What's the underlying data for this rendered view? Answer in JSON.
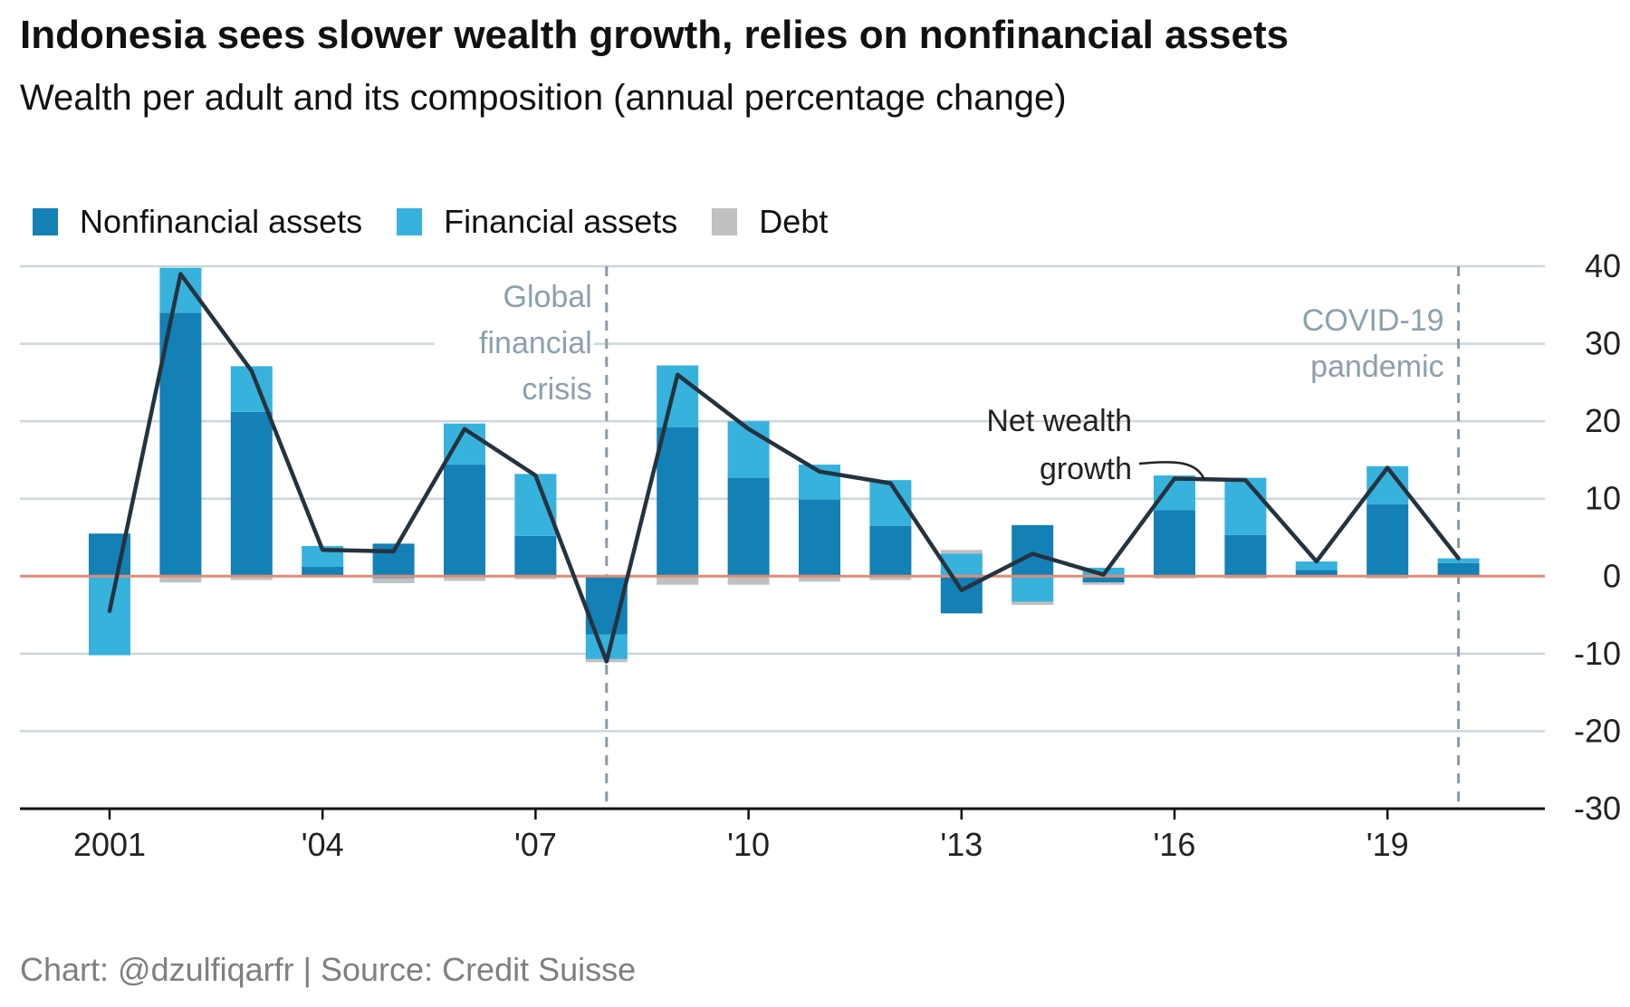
{
  "header": {
    "title": "Indonesia sees slower wealth growth, relies on nonfinancial assets",
    "subtitle": "Wealth per adult and its composition (annual percentage change)"
  },
  "footer": {
    "source": "Chart: @dzulfiqarfr | Source: Credit Suisse"
  },
  "chart_data": {
    "type": "bar",
    "stacked": true,
    "x": [
      2001,
      2002,
      2003,
      2004,
      2005,
      2006,
      2007,
      2008,
      2009,
      2010,
      2011,
      2012,
      2013,
      2014,
      2015,
      2016,
      2017,
      2018,
      2019,
      2020
    ],
    "x_tick_labels": [
      "2001",
      "'04",
      "'07",
      "'10",
      "'13",
      "'16",
      "'19"
    ],
    "x_tick_values": [
      2001,
      2004,
      2007,
      2010,
      2013,
      2016,
      2019
    ],
    "ylim": [
      -30,
      40
    ],
    "y_ticks": [
      40,
      30,
      20,
      10,
      0,
      -10,
      -20,
      -30
    ],
    "y_axis_side": "right",
    "grid": true,
    "legend_position": "top-left",
    "series": [
      {
        "name": "Nonfinancial assets",
        "color": "#1380b6",
        "values": [
          5.5,
          34,
          21.2,
          1.2,
          4.2,
          14.4,
          5.2,
          -7.5,
          19.2,
          12.7,
          9.9,
          6.5,
          -4.8,
          6.6,
          -0.8,
          8.5,
          5.3,
          0.8,
          9.3,
          1.7
        ]
      },
      {
        "name": "Financial assets",
        "color": "#36b2dc",
        "values": [
          -10.2,
          5.8,
          5.9,
          2.7,
          -0.3,
          5.3,
          8,
          -3.2,
          8,
          7.3,
          4.5,
          5.9,
          2.9,
          -3.3,
          1.1,
          4.5,
          7.4,
          1.1,
          4.9,
          0.6
        ]
      },
      {
        "name": "Debt",
        "color": "#c0c0c0",
        "values": [
          0,
          -0.8,
          -0.5,
          0,
          -0.6,
          -0.6,
          -0.4,
          -0.4,
          -1.1,
          -1.1,
          -0.7,
          -0.5,
          0.5,
          -0.4,
          -0.3,
          -0.3,
          -0.3,
          -0.1,
          -0.3,
          -0.1
        ]
      }
    ],
    "line_series": {
      "name": "Net wealth growth",
      "label_lines": [
        "Net wealth",
        "growth"
      ],
      "color": "#25333f",
      "values": [
        -4.5,
        39,
        26.5,
        3.4,
        3.2,
        19,
        13,
        -11,
        26,
        19,
        13.5,
        12,
        -1.8,
        2.9,
        0.2,
        12.6,
        12.4,
        1.9,
        14,
        2.3
      ]
    },
    "annotations": [
      {
        "x": 2008,
        "lines": [
          "Global",
          "financial",
          "crisis"
        ],
        "color": "#8aa0ae"
      },
      {
        "x": 2020,
        "lines": [
          "COVID-19",
          "pandemic"
        ],
        "color": "#8aa0ae"
      }
    ],
    "zero_line_color": "#e28a78",
    "grid_color": "#ccd6db"
  }
}
